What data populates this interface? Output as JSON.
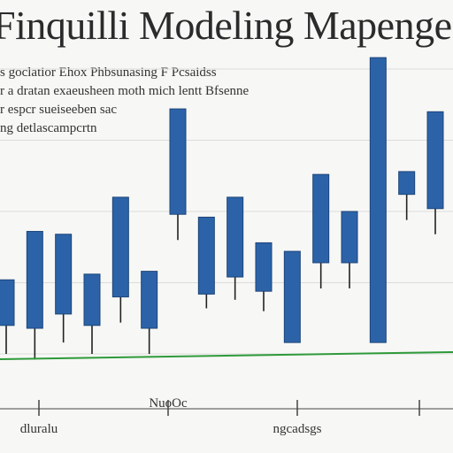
{
  "title": "Finquilli Modeling Mapenge",
  "legend_lines": [
    "s goclatior Ehox Phbsunasing F Pcsaidss",
    "r a dratan exaeusheen moth mich lentt Bfsenne",
    "r espcr sueiseeben sac",
    "ng detlascampcrtn"
  ],
  "x_tick_labels": [
    "dluralu",
    "NuoOc",
    "ngcadsgs",
    ""
  ],
  "colors": {
    "candle_fill": "#2c63a8",
    "candle_stroke": "#1c4478",
    "wick": "#222222",
    "baseline": "#2e9a3a",
    "grid": "#dcdcdc"
  },
  "chart_data": {
    "type": "candlestick",
    "ylim": [
      0,
      100
    ],
    "grid": true,
    "series": [
      {
        "values": [
          {
            "open": 26,
            "close": 10,
            "high": 26,
            "low": 0
          },
          {
            "open": 43,
            "close": 9,
            "high": 43,
            "low": -2
          },
          {
            "open": 42,
            "close": 14,
            "high": 42,
            "low": 4
          },
          {
            "open": 28,
            "close": 10,
            "high": 28,
            "low": 0
          },
          {
            "open": 55,
            "close": 20,
            "high": 55,
            "low": 11
          },
          {
            "open": 29,
            "close": 9,
            "high": 29,
            "low": 0
          },
          {
            "open": 86,
            "close": 49,
            "high": 86,
            "low": 40
          },
          {
            "open": 48,
            "close": 21,
            "high": 48,
            "low": 16
          },
          {
            "open": 55,
            "close": 27,
            "high": 55,
            "low": 19
          },
          {
            "open": 39,
            "close": 22,
            "high": 39,
            "low": 15
          },
          {
            "open": 36,
            "close": 4,
            "high": 36,
            "low": 4
          },
          {
            "open": 63,
            "close": 32,
            "high": 63,
            "low": 23
          },
          {
            "open": 50,
            "close": 32,
            "high": 50,
            "low": 23
          },
          {
            "open": 104,
            "close": 4,
            "high": 104,
            "low": 4
          },
          {
            "open": 64,
            "close": 56,
            "high": 64,
            "low": 47
          },
          {
            "open": 85,
            "close": 51,
            "high": 85,
            "low": 42
          }
        ]
      }
    ]
  }
}
